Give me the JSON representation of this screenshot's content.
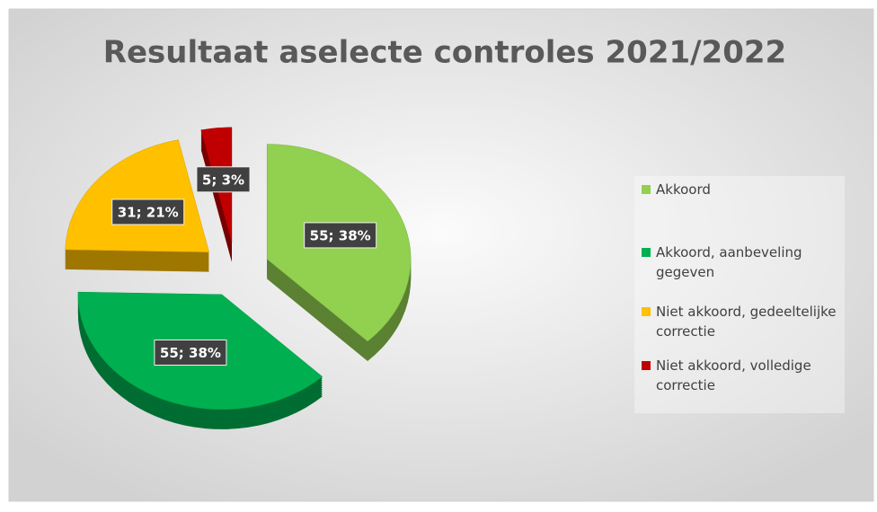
{
  "chart_data": {
    "type": "pie",
    "title": "Resultaat aselecte controles 2021/2022",
    "categories": [
      "Akkoord",
      "Akkoord, aanbeveling gegeven",
      "Niet akkoord, gedeeltelijke correctie",
      "Niet akkoord, volledige correctie"
    ],
    "values": [
      55,
      55,
      31,
      5
    ],
    "value_labels": [
      "55; 38%",
      "55; 38%",
      "31; 21%",
      "5; 3%"
    ],
    "colors": [
      "#92d050",
      "#00b050",
      "#ffc000",
      "#c00000"
    ],
    "legend": "right"
  }
}
